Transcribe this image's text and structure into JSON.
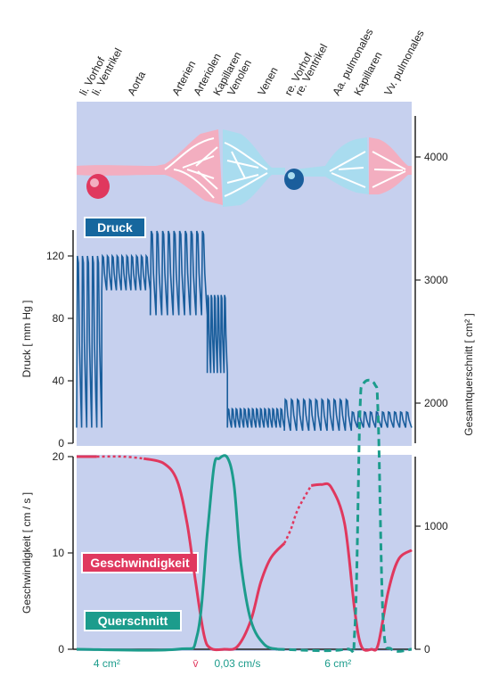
{
  "chart_data": {
    "type": "line",
    "regions": [
      "li. Vorhof",
      "li. Ventrikel",
      "Aorta",
      "Arterien",
      "Arteriolen",
      "Kapillaren",
      "Venolen",
      "Venen",
      "re. Vorhof",
      "re. Ventrikel",
      "Aa. pulmonales",
      "Kapillaren",
      "Vv. pulmonales"
    ],
    "panels": {
      "top": {
        "label": "Druck",
        "ylabel": "Druck [ mm Hg ]",
        "ylim": [
          0,
          140
        ],
        "yticks": [
          0,
          40,
          80,
          120
        ],
        "series": [
          {
            "label": "Druck",
            "segments": [
              {
                "from": 0.0,
                "to": 0.075,
                "min": 10,
                "max": 120,
                "beats": 5
              },
              {
                "from": 0.075,
                "to": 0.22,
                "min": 98,
                "max": 120,
                "beats": 10
              },
              {
                "from": 0.22,
                "to": 0.39,
                "min": 82,
                "max": 136,
                "beats": 10
              },
              {
                "from": 0.39,
                "to": 0.45,
                "min": 45,
                "max": 95,
                "beats": 6
              },
              {
                "from": 0.45,
                "to": 0.62,
                "min": 10,
                "max": 22,
                "beats": 14
              },
              {
                "from": 0.62,
                "to": 0.82,
                "min": 8,
                "max": 28,
                "beats": 11
              },
              {
                "from": 0.82,
                "to": 1.0,
                "min": 10,
                "max": 20,
                "beats": 10
              }
            ]
          }
        ]
      },
      "bottom": {
        "ylabel": "Geschwindigkeit [ cm / s ]",
        "ylim": [
          0,
          20
        ],
        "yticks": [
          0,
          10,
          20
        ],
        "right_ylabel": "Gesamtquerschnitt [ cm² ]",
        "right_ticks": [
          0,
          1000,
          2000,
          3000,
          4000
        ],
        "series": [
          {
            "label": "Geschwindigkeit",
            "color": "#e0385e",
            "points": [
              [
                0.0,
                20
              ],
              [
                0.06,
                20
              ],
              [
                0.14,
                20
              ],
              [
                0.2,
                19.8
              ],
              [
                0.26,
                19.3
              ],
              [
                0.3,
                17.5
              ],
              [
                0.33,
                13
              ],
              [
                0.355,
                7
              ],
              [
                0.38,
                1.5
              ],
              [
                0.4,
                0.1
              ],
              [
                0.44,
                0
              ],
              [
                0.48,
                0.3
              ],
              [
                0.52,
                3
              ],
              [
                0.55,
                7
              ],
              [
                0.58,
                9.5
              ],
              [
                0.62,
                11
              ],
              [
                0.64,
                12.5
              ],
              [
                0.66,
                14.5
              ],
              [
                0.7,
                17
              ],
              [
                0.73,
                17.1
              ],
              [
                0.76,
                16.8
              ],
              [
                0.8,
                13
              ],
              [
                0.83,
                4
              ],
              [
                0.85,
                0.3
              ],
              [
                0.88,
                0
              ],
              [
                0.9,
                0.5
              ],
              [
                0.93,
                6
              ],
              [
                0.96,
                9.3
              ],
              [
                1.0,
                10.3
              ]
            ],
            "dotted": [
              [
                0.06,
                0.14
              ],
              [
                0.62,
                0.66
              ]
            ]
          },
          {
            "label": "Querschnitt",
            "color": "#1c9c8c",
            "points": [
              [
                0.0,
                0
              ],
              [
                0.3,
                0
              ],
              [
                0.36,
                1.5
              ],
              [
                0.39,
                12
              ],
              [
                0.41,
                19
              ],
              [
                0.425,
                19.8
              ],
              [
                0.45,
                19.9
              ],
              [
                0.47,
                17
              ],
              [
                0.49,
                9
              ],
              [
                0.52,
                3
              ],
              [
                0.56,
                0.5
              ],
              [
                0.6,
                0
              ],
              [
                0.8,
                0
              ],
              [
                0.83,
                2
              ],
              [
                0.845,
                24
              ],
              [
                0.855,
                27.5
              ],
              [
                0.89,
                27.5
              ],
              [
                0.9,
                24
              ],
              [
                0.915,
                3
              ],
              [
                0.94,
                0
              ],
              [
                1.0,
                0
              ]
            ],
            "dashed_spans": [
              [
                0.6,
                0.8
              ],
              [
                0.8,
                0.94
              ]
            ]
          }
        ]
      }
    },
    "bottom_labels": [
      {
        "text": "4 cm²",
        "color": "#1c9c8c",
        "at": 0.09
      },
      {
        "text": "v̄",
        "color": "#e0385e",
        "at": 0.355
      },
      {
        "text": "0,03 cm/s",
        "color": "#1c9c8c",
        "at": 0.48
      },
      {
        "text": "6 cm²",
        "color": "#1c9c8c",
        "at": 0.78
      }
    ],
    "labels": {
      "geschwindigkeit": "Geschwindigkeit",
      "querschnitt": "Querschnitt"
    }
  }
}
